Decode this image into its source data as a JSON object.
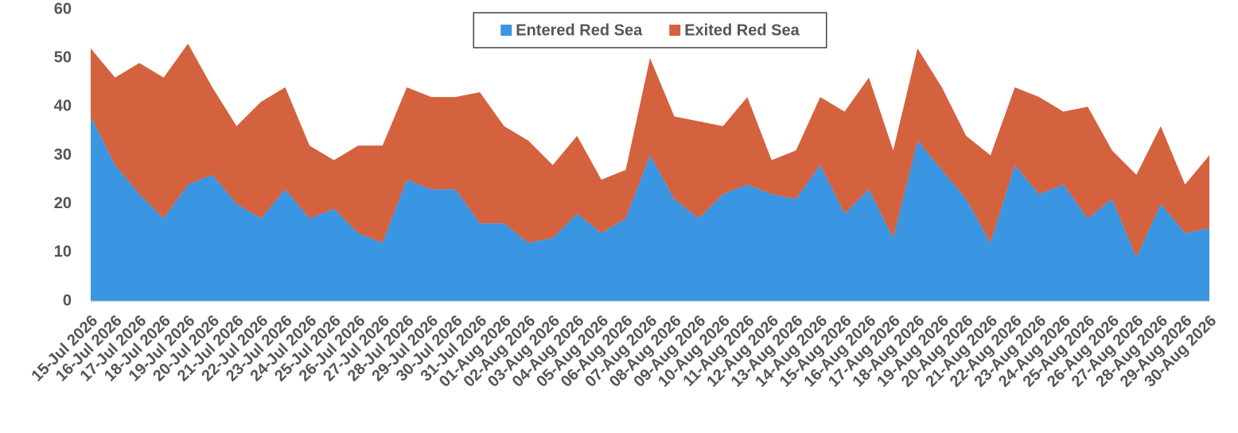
{
  "chart_data": {
    "type": "stacked_area",
    "categories": [
      "15-Jul 2026",
      "16-Jul 2026",
      "17-Jul 2026",
      "18-Jul 2026",
      "19-Jul 2026",
      "20-Jul 2026",
      "21-Jul 2026",
      "22-Jul 2026",
      "23-Jul 2026",
      "24-Jul 2026",
      "25-Jul 2026",
      "26-Jul 2026",
      "27-Jul 2026",
      "28-Jul 2026",
      "29-Jul 2026",
      "30-Jul 2026",
      "31-Jul 2026",
      "01-Aug 2026",
      "02-Aug 2026",
      "03-Aug 2026",
      "04-Aug 2026",
      "05-Aug 2026",
      "06-Aug 2026",
      "07-Aug 2026",
      "08-Aug 2026",
      "09-Aug 2026",
      "10-Aug 2026",
      "11-Aug 2026",
      "12-Aug 2026",
      "13-Aug 2026",
      "14-Aug 2026",
      "15-Aug 2026",
      "16-Aug 2026",
      "17-Aug 2026",
      "18-Aug 2026",
      "19-Aug 2026",
      "20-Aug 2026",
      "21-Aug 2026",
      "22-Aug 2026",
      "23-Aug 2026",
      "24-Aug 2026",
      "25-Aug 2026",
      "26-Aug 2026",
      "27-Aug 2026",
      "28-Aug 2026",
      "29-Aug 2026",
      "30-Aug 2026"
    ],
    "series": [
      {
        "name": "Entered Red Sea",
        "color": "#3a96e2",
        "values": [
          38,
          28,
          22,
          17,
          24,
          26,
          20,
          17,
          23,
          17,
          19,
          14,
          12,
          25,
          23,
          23,
          16,
          16,
          12,
          13,
          18,
          14,
          17,
          30,
          21,
          17,
          22,
          24,
          22,
          21,
          28,
          18,
          23,
          13,
          33,
          27,
          21,
          12,
          28,
          22,
          24,
          17,
          21,
          9,
          20,
          14,
          15
        ]
      },
      {
        "name": "Exited Red Sea",
        "color": "#d4623f",
        "values": [
          14,
          18,
          27,
          29,
          29,
          18,
          16,
          24,
          21,
          15,
          10,
          18,
          20,
          19,
          19,
          19,
          27,
          20,
          21,
          15,
          16,
          11,
          10,
          20,
          17,
          20,
          14,
          18,
          7,
          10,
          14,
          21,
          23,
          18,
          19,
          17,
          13,
          18,
          16,
          20,
          15,
          23,
          10,
          17,
          16,
          10,
          15
        ]
      }
    ],
    "ylim": [
      0,
      60
    ],
    "yticks": [
      0,
      10,
      20,
      30,
      40,
      50,
      60
    ],
    "legend": "top"
  }
}
